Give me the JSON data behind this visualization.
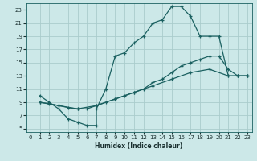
{
  "xlabel": "Humidex (Indice chaleur)",
  "bg_color": "#cce8e8",
  "grid_color": "#aacccc",
  "line_color": "#1a6060",
  "xlim": [
    -0.5,
    23.5
  ],
  "ylim": [
    4.5,
    24
  ],
  "xticks": [
    0,
    1,
    2,
    3,
    4,
    5,
    6,
    7,
    8,
    9,
    10,
    11,
    12,
    13,
    14,
    15,
    16,
    17,
    18,
    19,
    20,
    21,
    22,
    23
  ],
  "yticks": [
    5,
    7,
    9,
    11,
    13,
    15,
    17,
    19,
    21,
    23
  ],
  "curve1_x": [
    1,
    2,
    3,
    4,
    5,
    6,
    7,
    7,
    8,
    9,
    10,
    11,
    12,
    13,
    14,
    15,
    16,
    17,
    18,
    19,
    20,
    21,
    22,
    23
  ],
  "curve1_y": [
    10,
    9,
    8,
    6.5,
    6,
    5.5,
    5.5,
    8.0,
    11,
    16,
    16.5,
    18,
    19,
    21,
    21.5,
    23.5,
    23.5,
    22,
    19,
    19,
    19,
    13,
    13,
    13
  ],
  "curve2_x": [
    1,
    2,
    3,
    4,
    5,
    6,
    7,
    8,
    9,
    10,
    11,
    12,
    13,
    14,
    15,
    16,
    17,
    18,
    19,
    20,
    21,
    22,
    23
  ],
  "curve2_y": [
    9,
    8.8,
    8.5,
    8.2,
    8.0,
    8.0,
    8.5,
    9,
    9.5,
    10,
    10.5,
    11,
    12,
    12.5,
    13.5,
    14.5,
    15,
    15.5,
    16,
    16,
    14,
    13,
    13
  ],
  "curve3_x": [
    1,
    3,
    5,
    7,
    9,
    11,
    13,
    15,
    17,
    19,
    21,
    22,
    23
  ],
  "curve3_y": [
    9,
    8.5,
    8.0,
    8.5,
    9.5,
    10.5,
    11.5,
    12.5,
    13.5,
    14,
    13,
    13,
    13
  ]
}
